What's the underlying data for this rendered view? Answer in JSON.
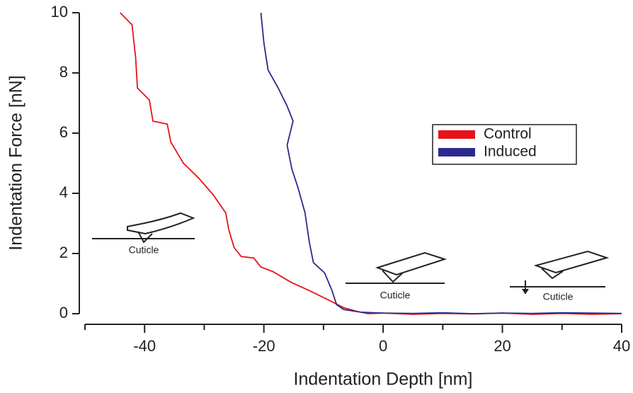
{
  "chart_data": {
    "type": "line",
    "xlabel": "Indentation Depth [nm]",
    "ylabel": "Indentation Force [nN]",
    "xlim": [
      -50,
      40
    ],
    "ylim": [
      0,
      10
    ],
    "xticks": [
      -40,
      -20,
      0,
      20,
      40
    ],
    "xminorticks": [
      -50,
      -30,
      -10,
      10,
      30
    ],
    "yticks": [
      0,
      2,
      4,
      6,
      8,
      10
    ],
    "legend_position": "center-right",
    "annotations": [
      "Cuticle",
      "Cuticle",
      "Cuticle"
    ],
    "series": [
      {
        "name": "Control",
        "color": "#e8121b",
        "x": [
          -44.1,
          -42.1,
          -41.5,
          -41.2,
          -39.2,
          -38.6,
          -36.2,
          -35.6,
          -33.5,
          -30.9,
          -28.5,
          -26.4,
          -25.9,
          -25.0,
          -23.8,
          -21.7,
          -20.5,
          -18.5,
          -15.5,
          -12.5,
          -9.6,
          -6.6,
          -4.3,
          -2.5,
          0,
          5,
          10,
          15,
          20,
          25,
          30,
          35,
          40
        ],
        "values": [
          10,
          9.6,
          8.5,
          7.5,
          7.1,
          6.4,
          6.3,
          5.7,
          5.0,
          4.5,
          3.95,
          3.35,
          2.8,
          2.2,
          1.9,
          1.85,
          1.55,
          1.4,
          1.05,
          0.78,
          0.5,
          0.2,
          0.07,
          0,
          0.02,
          -0.02,
          0.01,
          -0.01,
          0.02,
          -0.02,
          0.01,
          -0.02,
          0
        ]
      },
      {
        "name": "Induced",
        "color": "#2b2a8c",
        "x": [
          -20.5,
          -20.0,
          -19.3,
          -17.6,
          -16.1,
          -15.1,
          -16.1,
          -15.3,
          -14.3,
          -13.1,
          -12.4,
          -11.7,
          -9.8,
          -8.6,
          -7.8,
          -6.6,
          -3.7,
          0,
          5,
          10,
          15,
          20,
          25,
          30,
          35,
          40
        ],
        "values": [
          10,
          9.0,
          8.1,
          7.5,
          6.9,
          6.4,
          5.6,
          4.8,
          4.2,
          3.35,
          2.4,
          1.7,
          1.35,
          0.78,
          0.3,
          0.14,
          0.05,
          0.02,
          0.01,
          0.03,
          0,
          0.02,
          0.01,
          0.03,
          0.02,
          0.01
        ]
      }
    ]
  }
}
